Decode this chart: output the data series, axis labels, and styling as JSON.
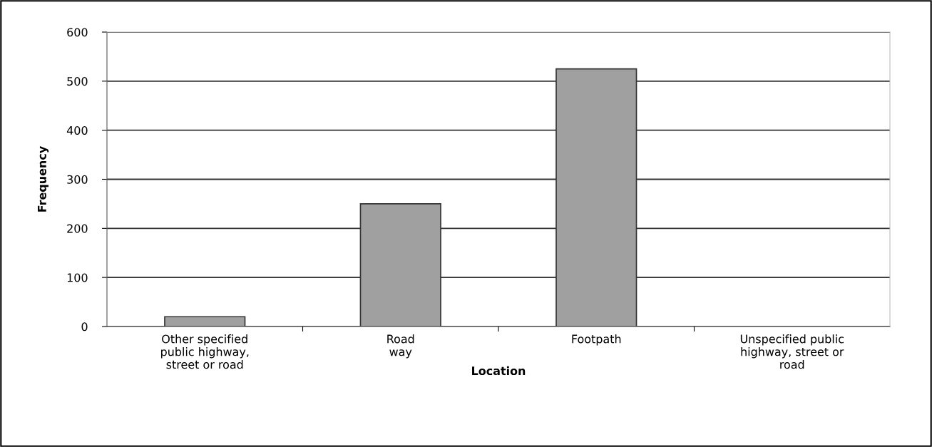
{
  "chart_data": {
    "type": "bar",
    "xlabel": "Location",
    "ylabel": "Frequency",
    "categories": [
      "Other specified\npublic highway,\nstreet or road",
      "Road\nway",
      "Footpath",
      "Unspecified public\nhighway, street or\nroad"
    ],
    "values": [
      20,
      250,
      525,
      0
    ],
    "color": "#a0a0a0",
    "ylim": [
      0,
      600
    ],
    "yticks": [
      0,
      100,
      200,
      300,
      400,
      500,
      600
    ],
    "grid": "y",
    "legend": false
  }
}
